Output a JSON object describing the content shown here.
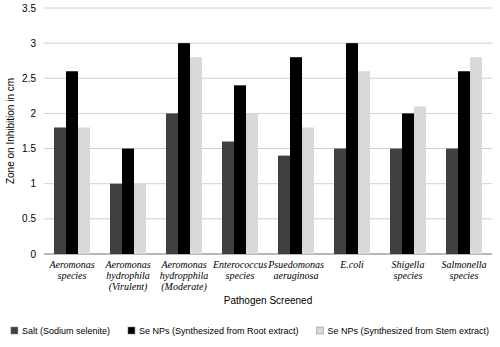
{
  "chart_data": {
    "type": "bar",
    "x_label": "Pathogen Screened",
    "y_label": "Zone on Inhibition in cm",
    "categories": [
      "Aeromonas species",
      "Aeromonas hydrophila (Virulent)",
      "Aeromonas hydropphila (Moderate)",
      "Enterococcus species",
      "Psuedomonas aeruginosa",
      "E.coli",
      "Shigella species",
      "Salmonella species"
    ],
    "series": [
      {
        "name": "Salt  (Sodium selenite)",
        "color": "#404040",
        "values": [
          1.8,
          1.0,
          2.0,
          1.6,
          1.4,
          1.5,
          1.5,
          1.5
        ]
      },
      {
        "name": "Se NPs (Synthesized from Root extract)",
        "color": "#000000",
        "values": [
          2.6,
          1.5,
          3.0,
          2.4,
          2.8,
          3.0,
          2.0,
          2.6
        ]
      },
      {
        "name": "Se NPs (Synthesized from Stem extract)",
        "color": "#d9d9d9",
        "values": [
          1.8,
          1.0,
          2.8,
          2.0,
          1.8,
          2.6,
          2.1,
          2.8
        ]
      }
    ],
    "ylim": [
      0,
      3.5
    ],
    "yticks": [
      0,
      0.5,
      1,
      1.5,
      2,
      2.5,
      3,
      3.5
    ],
    "grid": true,
    "legend": "bottom"
  }
}
